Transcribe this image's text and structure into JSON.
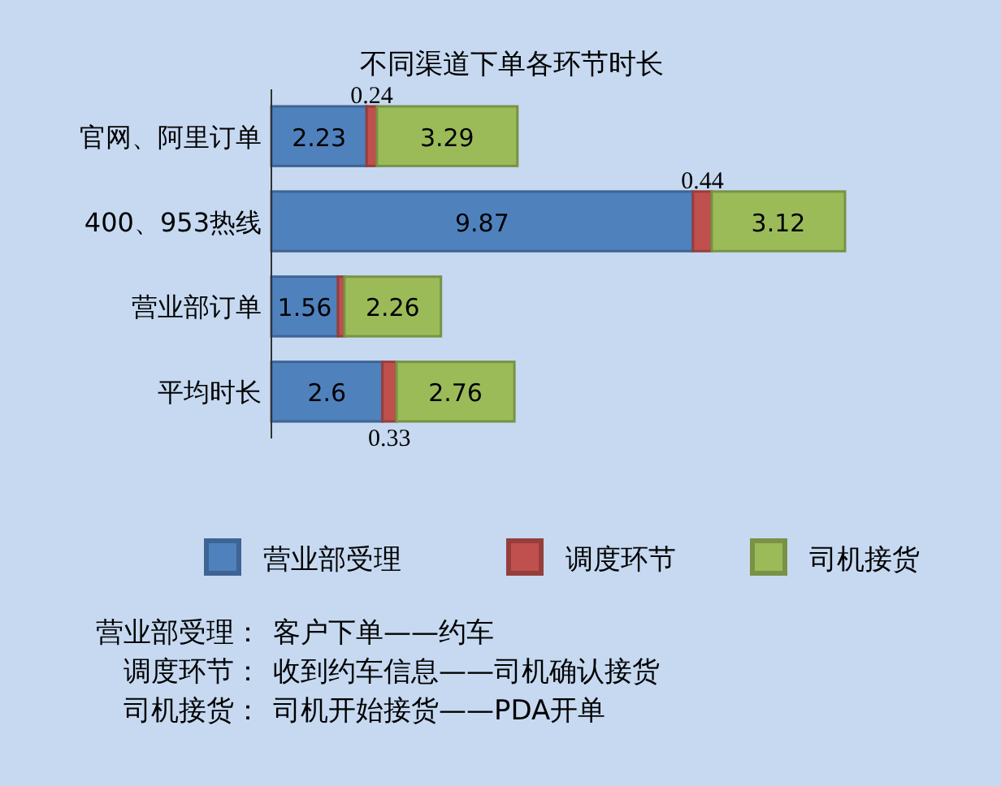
{
  "chart_data": {
    "type": "bar",
    "orientation": "horizontal",
    "stacked": true,
    "title": "不同渠道下单各环节时长",
    "categories": [
      "官网、阿里订单",
      "400、953热线",
      "营业部订单",
      "平均时长"
    ],
    "series": [
      {
        "name": "营业部受理",
        "color": "#4f81bd",
        "values": [
          2.23,
          9.87,
          1.56,
          2.6
        ],
        "value_labels": [
          "2.23",
          "9.87",
          "1.56",
          "2.6"
        ]
      },
      {
        "name": "调度环节",
        "color": "#c0504d",
        "values": [
          0.24,
          0.44,
          0.15,
          0.33
        ],
        "value_labels": [
          "0.24",
          "0.44",
          null,
          "0.33"
        ]
      },
      {
        "name": "司机接货",
        "color": "#9bbb59",
        "values": [
          3.29,
          3.12,
          2.26,
          2.76
        ],
        "value_labels": [
          "3.29",
          "3.12",
          "2.26",
          "2.76"
        ]
      }
    ],
    "legend": "bottom",
    "grid": false,
    "annotations": [
      "营业部受理：  客户下单——约车",
      "调度环节：收到约车信息——司机确认接货",
      "司机接货：  司机开始接货——PDA开单"
    ]
  }
}
